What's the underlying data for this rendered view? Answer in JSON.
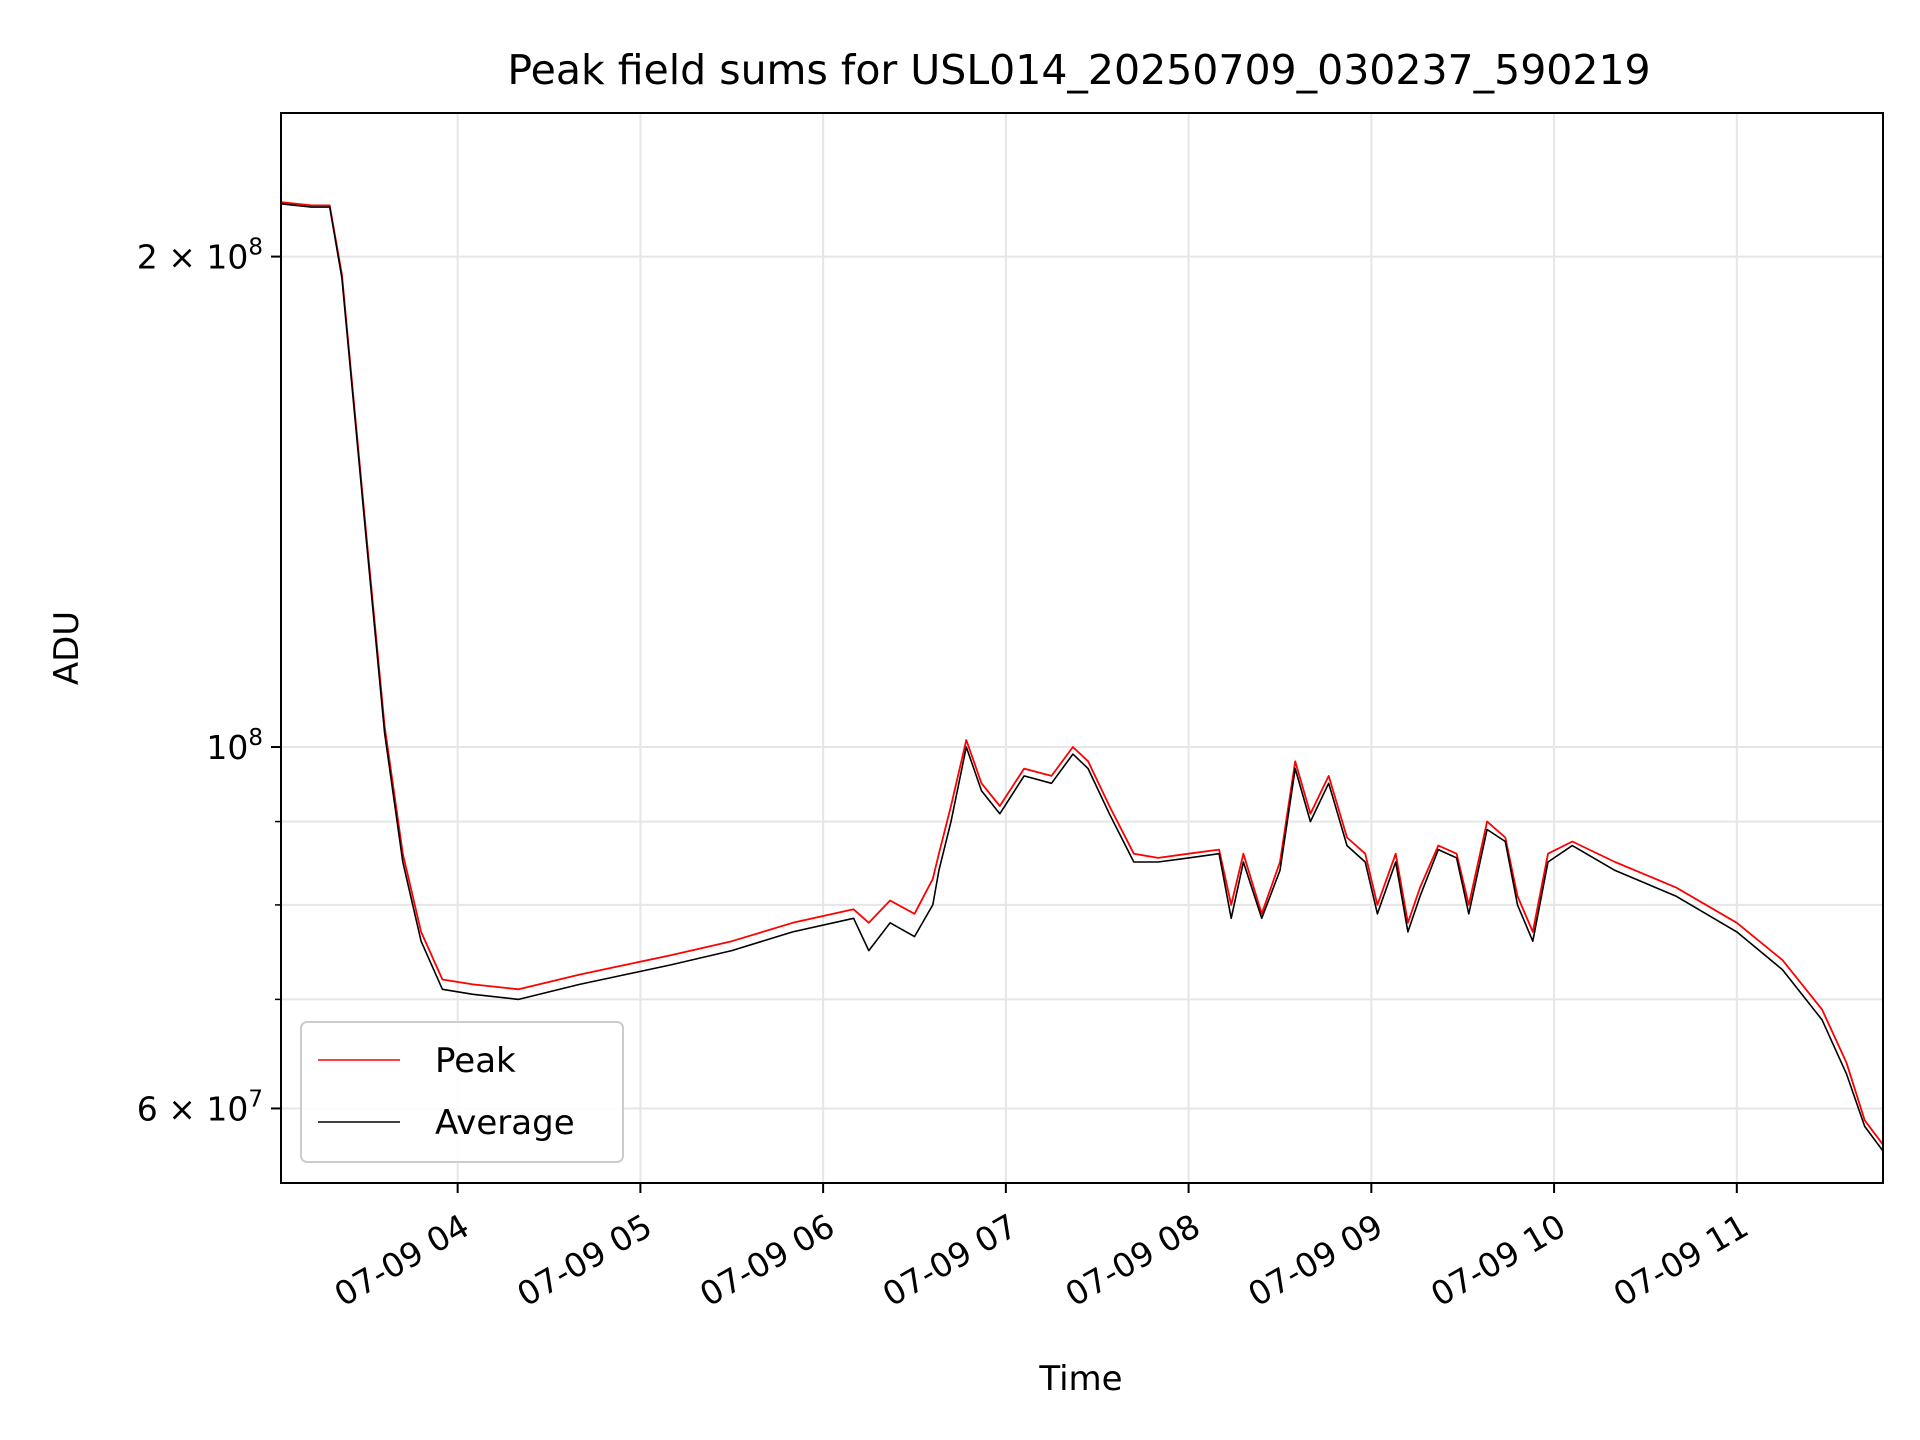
{
  "chart_data": {
    "type": "line",
    "title": "Peak field sums for USL014_20250709_030237_590219",
    "xlabel": "Time",
    "ylabel": "ADU",
    "yscale": "log",
    "ylim": [
      54000000,
      245000000
    ],
    "xlim": [
      "2025-07-09 03:02",
      "2025-07-09 11:48"
    ],
    "grid": true,
    "legend_position": "lower-left",
    "x_ticks": [
      {
        "t": "2025-07-09 04:00",
        "label": "07-09 04"
      },
      {
        "t": "2025-07-09 05:00",
        "label": "07-09 05"
      },
      {
        "t": "2025-07-09 06:00",
        "label": "07-09 06"
      },
      {
        "t": "2025-07-09 07:00",
        "label": "07-09 07"
      },
      {
        "t": "2025-07-09 08:00",
        "label": "07-09 08"
      },
      {
        "t": "2025-07-09 09:00",
        "label": "07-09 09"
      },
      {
        "t": "2025-07-09 10:00",
        "label": "07-09 10"
      },
      {
        "t": "2025-07-09 11:00",
        "label": "07-09 11"
      }
    ],
    "y_ticks": [
      {
        "v": 60000000,
        "mantissa": "6",
        "base": "10",
        "exp": "7"
      },
      {
        "v": 100000000,
        "mantissa": "",
        "base": "10",
        "exp": "8"
      },
      {
        "v": 200000000,
        "mantissa": "2",
        "base": "10",
        "exp": "8"
      }
    ],
    "y_minor_ticks": [
      70000000,
      80000000,
      90000000
    ],
    "series": [
      {
        "name": "Peak",
        "color": "#ff0000",
        "points": [
          [
            "2025-07-09 03:02",
            216000000
          ],
          [
            "2025-07-09 03:12",
            215000000
          ],
          [
            "2025-07-09 03:18",
            215000000
          ],
          [
            "2025-07-09 03:22",
            195000000
          ],
          [
            "2025-07-09 03:30",
            135000000
          ],
          [
            "2025-07-09 03:36",
            103000000
          ],
          [
            "2025-07-09 03:42",
            86000000
          ],
          [
            "2025-07-09 03:48",
            77000000
          ],
          [
            "2025-07-09 03:55",
            72000000
          ],
          [
            "2025-07-09 04:05",
            71500000
          ],
          [
            "2025-07-09 04:20",
            71000000
          ],
          [
            "2025-07-09 04:40",
            72500000
          ],
          [
            "2025-07-09 04:55",
            73500000
          ],
          [
            "2025-07-09 05:10",
            74500000
          ],
          [
            "2025-07-09 05:30",
            76000000
          ],
          [
            "2025-07-09 05:50",
            78000000
          ],
          [
            "2025-07-09 06:10",
            79500000
          ],
          [
            "2025-07-09 06:15",
            78000000
          ],
          [
            "2025-07-09 06:22",
            80500000
          ],
          [
            "2025-07-09 06:30",
            79000000
          ],
          [
            "2025-07-09 06:36",
            83000000
          ],
          [
            "2025-07-09 06:38",
            86000000
          ],
          [
            "2025-07-09 06:42",
            92000000
          ],
          [
            "2025-07-09 06:47",
            101000000
          ],
          [
            "2025-07-09 06:52",
            95000000
          ],
          [
            "2025-07-09 06:58",
            92000000
          ],
          [
            "2025-07-09 07:06",
            97000000
          ],
          [
            "2025-07-09 07:15",
            96000000
          ],
          [
            "2025-07-09 07:22",
            100000000
          ],
          [
            "2025-07-09 07:27",
            98000000
          ],
          [
            "2025-07-09 07:34",
            92000000
          ],
          [
            "2025-07-09 07:42",
            86000000
          ],
          [
            "2025-07-09 07:50",
            85500000
          ],
          [
            "2025-07-09 08:00",
            86000000
          ],
          [
            "2025-07-09 08:10",
            86500000
          ],
          [
            "2025-07-09 08:14",
            80000000
          ],
          [
            "2025-07-09 08:18",
            86000000
          ],
          [
            "2025-07-09 08:24",
            79000000
          ],
          [
            "2025-07-09 08:30",
            85000000
          ],
          [
            "2025-07-09 08:35",
            98000000
          ],
          [
            "2025-07-09 08:40",
            91000000
          ],
          [
            "2025-07-09 08:46",
            96000000
          ],
          [
            "2025-07-09 08:52",
            88000000
          ],
          [
            "2025-07-09 08:58",
            86000000
          ],
          [
            "2025-07-09 09:02",
            80000000
          ],
          [
            "2025-07-09 09:08",
            86000000
          ],
          [
            "2025-07-09 09:12",
            78000000
          ],
          [
            "2025-07-09 09:16",
            82000000
          ],
          [
            "2025-07-09 09:22",
            87000000
          ],
          [
            "2025-07-09 09:28",
            86000000
          ],
          [
            "2025-07-09 09:32",
            80000000
          ],
          [
            "2025-07-09 09:38",
            90000000
          ],
          [
            "2025-07-09 09:44",
            88000000
          ],
          [
            "2025-07-09 09:48",
            81000000
          ],
          [
            "2025-07-09 09:53",
            77000000
          ],
          [
            "2025-07-09 09:58",
            86000000
          ],
          [
            "2025-07-09 10:06",
            87500000
          ],
          [
            "2025-07-09 10:20",
            85000000
          ],
          [
            "2025-07-09 10:40",
            82000000
          ],
          [
            "2025-07-09 11:00",
            78000000
          ],
          [
            "2025-07-09 11:15",
            74000000
          ],
          [
            "2025-07-09 11:28",
            69000000
          ],
          [
            "2025-07-09 11:36",
            64000000
          ],
          [
            "2025-07-09 11:42",
            59000000
          ],
          [
            "2025-07-09 11:48",
            57000000
          ]
        ]
      },
      {
        "name": "Average",
        "color": "#000000",
        "points": [
          [
            "2025-07-09 03:02",
            215500000
          ],
          [
            "2025-07-09 03:12",
            214500000
          ],
          [
            "2025-07-09 03:18",
            214500000
          ],
          [
            "2025-07-09 03:22",
            194000000
          ],
          [
            "2025-07-09 03:30",
            134000000
          ],
          [
            "2025-07-09 03:36",
            102000000
          ],
          [
            "2025-07-09 03:42",
            85000000
          ],
          [
            "2025-07-09 03:48",
            76000000
          ],
          [
            "2025-07-09 03:55",
            71000000
          ],
          [
            "2025-07-09 04:05",
            70500000
          ],
          [
            "2025-07-09 04:20",
            70000000
          ],
          [
            "2025-07-09 04:40",
            71500000
          ],
          [
            "2025-07-09 04:55",
            72500000
          ],
          [
            "2025-07-09 05:10",
            73500000
          ],
          [
            "2025-07-09 05:30",
            75000000
          ],
          [
            "2025-07-09 05:50",
            77000000
          ],
          [
            "2025-07-09 06:10",
            78500000
          ],
          [
            "2025-07-09 06:15",
            75000000
          ],
          [
            "2025-07-09 06:22",
            78000000
          ],
          [
            "2025-07-09 06:30",
            76500000
          ],
          [
            "2025-07-09 06:36",
            80000000
          ],
          [
            "2025-07-09 06:38",
            84000000
          ],
          [
            "2025-07-09 06:42",
            90000000
          ],
          [
            "2025-07-09 06:47",
            100000000
          ],
          [
            "2025-07-09 06:52",
            94000000
          ],
          [
            "2025-07-09 06:58",
            91000000
          ],
          [
            "2025-07-09 07:06",
            96000000
          ],
          [
            "2025-07-09 07:15",
            95000000
          ],
          [
            "2025-07-09 07:22",
            99000000
          ],
          [
            "2025-07-09 07:27",
            97000000
          ],
          [
            "2025-07-09 07:34",
            91000000
          ],
          [
            "2025-07-09 07:42",
            85000000
          ],
          [
            "2025-07-09 07:50",
            85000000
          ],
          [
            "2025-07-09 08:00",
            85500000
          ],
          [
            "2025-07-09 08:10",
            86000000
          ],
          [
            "2025-07-09 08:14",
            78500000
          ],
          [
            "2025-07-09 08:18",
            85000000
          ],
          [
            "2025-07-09 08:24",
            78500000
          ],
          [
            "2025-07-09 08:30",
            84000000
          ],
          [
            "2025-07-09 08:35",
            97000000
          ],
          [
            "2025-07-09 08:40",
            90000000
          ],
          [
            "2025-07-09 08:46",
            95000000
          ],
          [
            "2025-07-09 08:52",
            87000000
          ],
          [
            "2025-07-09 08:58",
            85000000
          ],
          [
            "2025-07-09 09:02",
            79000000
          ],
          [
            "2025-07-09 09:08",
            85000000
          ],
          [
            "2025-07-09 09:12",
            77000000
          ],
          [
            "2025-07-09 09:16",
            81000000
          ],
          [
            "2025-07-09 09:22",
            86500000
          ],
          [
            "2025-07-09 09:28",
            85500000
          ],
          [
            "2025-07-09 09:32",
            79000000
          ],
          [
            "2025-07-09 09:38",
            89000000
          ],
          [
            "2025-07-09 09:44",
            87500000
          ],
          [
            "2025-07-09 09:48",
            80000000
          ],
          [
            "2025-07-09 09:53",
            76000000
          ],
          [
            "2025-07-09 09:58",
            85000000
          ],
          [
            "2025-07-09 10:06",
            87000000
          ],
          [
            "2025-07-09 10:20",
            84000000
          ],
          [
            "2025-07-09 10:40",
            81000000
          ],
          [
            "2025-07-09 11:00",
            77000000
          ],
          [
            "2025-07-09 11:15",
            73000000
          ],
          [
            "2025-07-09 11:28",
            68000000
          ],
          [
            "2025-07-09 11:36",
            63000000
          ],
          [
            "2025-07-09 11:42",
            58500000
          ],
          [
            "2025-07-09 11:48",
            56500000
          ]
        ]
      }
    ]
  }
}
